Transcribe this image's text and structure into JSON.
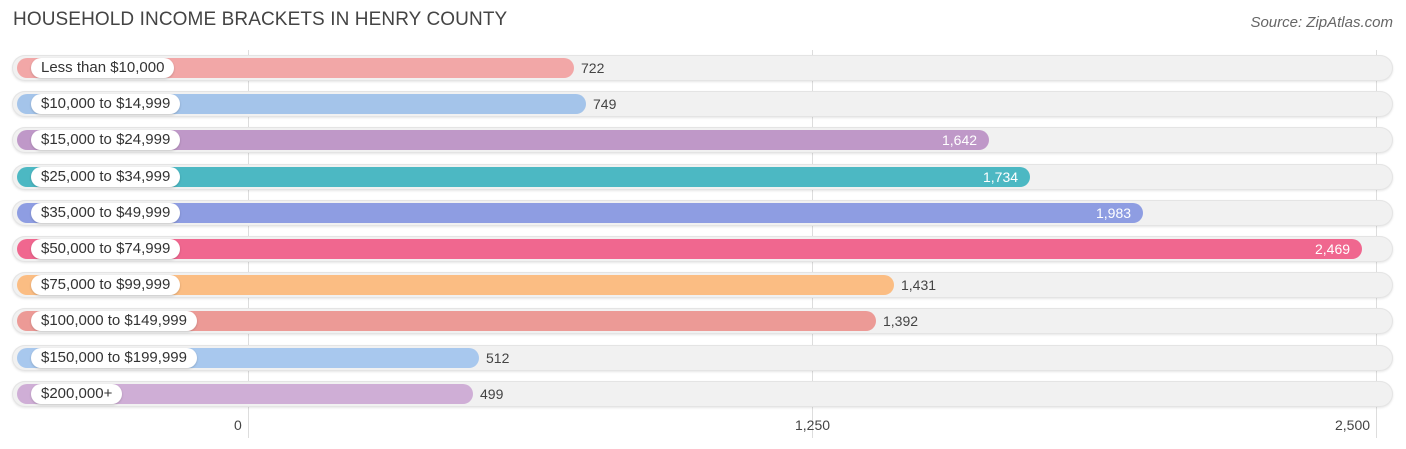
{
  "title": "HOUSEHOLD INCOME BRACKETS IN HENRY COUNTY",
  "source": "Source: ZipAtlas.com",
  "chart_data": {
    "type": "bar",
    "orientation": "horizontal",
    "categories": [
      "Less than $10,000",
      "$10,000 to $14,999",
      "$15,000 to $24,999",
      "$25,000 to $34,999",
      "$35,000 to $49,999",
      "$50,000 to $74,999",
      "$75,000 to $99,999",
      "$100,000 to $149,999",
      "$150,000 to $199,999",
      "$200,000+"
    ],
    "values": [
      722,
      749,
      1642,
      1734,
      1983,
      2469,
      1431,
      1392,
      512,
      499
    ],
    "value_labels": [
      "722",
      "749",
      "1,642",
      "1,734",
      "1,983",
      "2,469",
      "1,431",
      "1,392",
      "512",
      "499"
    ],
    "colors": [
      "#f2a7a7",
      "#a4c4ea",
      "#bf98c8",
      "#4cb8c3",
      "#8e9de2",
      "#f0678f",
      "#fbbd83",
      "#ec9a96",
      "#a8c8ee",
      "#cfaed6"
    ],
    "xlim": [
      0,
      2500
    ],
    "xticks": [
      0,
      1250,
      2500
    ],
    "xtick_labels": [
      "0",
      "1,250",
      "2,500"
    ],
    "grid": true
  }
}
